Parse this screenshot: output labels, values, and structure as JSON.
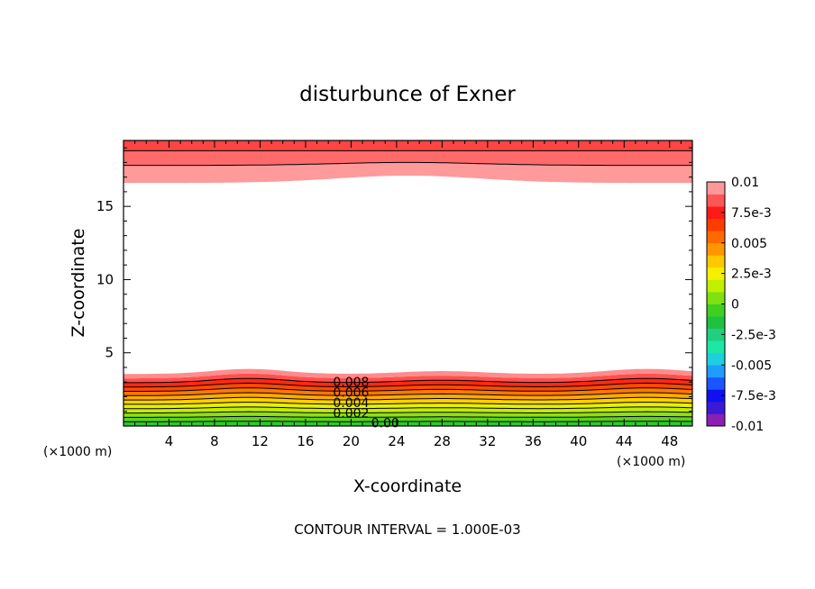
{
  "chart_data": {
    "type": "heatmap",
    "title": "disturbunce of Exner",
    "xlabel": "X-coordinate",
    "ylabel": "Z-coordinate",
    "x_unit_left": "(×1000 m)",
    "x_unit_right": "(×1000 m)",
    "footer": "CONTOUR INTERVAL = 1.000E-03",
    "xlim": [
      0,
      50
    ],
    "ylim": [
      0,
      19.5
    ],
    "x_ticks": [
      4,
      8,
      12,
      16,
      20,
      24,
      28,
      32,
      36,
      40,
      44,
      48
    ],
    "x_tick_labels": [
      "4",
      "8",
      "12",
      "16",
      "20",
      "24",
      "28",
      "32",
      "36",
      "40",
      "44",
      "48"
    ],
    "y_ticks": [
      5,
      10,
      15
    ],
    "y_tick_labels": [
      "5",
      "10",
      "15"
    ],
    "contour_labels": [
      {
        "text": "0.008",
        "x": 20,
        "z": 3.0
      },
      {
        "text": "0.006",
        "x": 20,
        "z": 2.3
      },
      {
        "text": "0.004",
        "x": 20,
        "z": 1.6
      },
      {
        "text": "0.002",
        "x": 20,
        "z": 0.9
      },
      {
        "text": "0.00",
        "x": 23,
        "z": 0.2
      }
    ],
    "colorbar": {
      "labels": [
        "0.01",
        "7.5e-3",
        "0.005",
        "2.5e-3",
        "0",
        "-2.5e-3",
        "-0.005",
        "-7.5e-3",
        "-0.01"
      ],
      "colors": [
        "#8a1fb4",
        "#3a1ad4",
        "#1010f0",
        "#1a55ff",
        "#1f9cff",
        "#1ecfe0",
        "#1ee6a5",
        "#20d080",
        "#20c040",
        "#3fd020",
        "#80e010",
        "#c0f000",
        "#f5f000",
        "#ffc800",
        "#ff9600",
        "#ff6a00",
        "#ff3c00",
        "#ff1a1a",
        "#ff5555",
        "#ff9898"
      ]
    }
  }
}
